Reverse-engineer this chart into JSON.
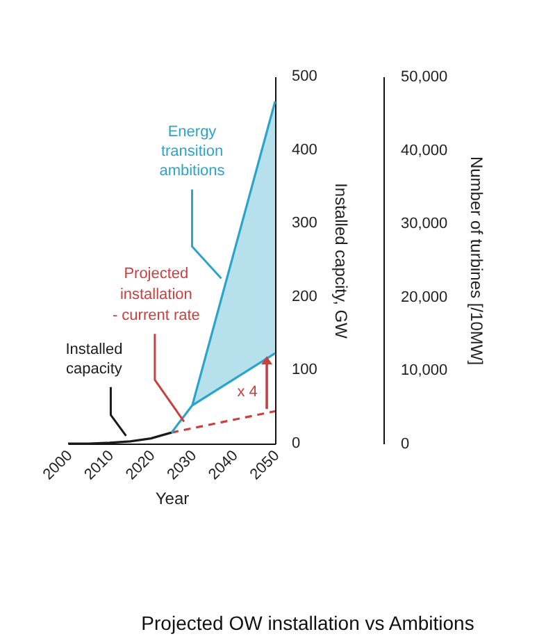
{
  "chart_data": {
    "type": "line",
    "title": "Projected OW installation vs Ambitions",
    "xlabel": "Year",
    "y2label": "Installed capcity, GW",
    "y3label": "Number of turbines [/10MW]",
    "xlim": [
      2000,
      2050
    ],
    "xticks": [
      2000,
      2010,
      2020,
      2030,
      2040,
      2050
    ],
    "y2lim": [
      0,
      500
    ],
    "y2ticks": [
      0,
      100,
      200,
      300,
      400,
      500
    ],
    "y3lim": [
      0,
      50000
    ],
    "y3ticks": [
      {
        "value": 0,
        "label": "0"
      },
      {
        "value": 10000,
        "label": "10,000"
      },
      {
        "value": 20000,
        "label": "20,000"
      },
      {
        "value": 30000,
        "label": "30,000"
      },
      {
        "value": 40000,
        "label": "40,000"
      },
      {
        "value": 50000,
        "label": "50,000"
      }
    ],
    "grid": false,
    "series": [
      {
        "axis": "y2",
        "color": "#1a1a1a",
        "line_style": "solid",
        "x": [
          2000,
          2005,
          2010,
          2015,
          2020,
          2025
        ],
        "values": [
          0,
          0,
          1,
          3,
          7,
          15
        ]
      },
      {
        "axis": "y2",
        "color": "#c94040",
        "line_style": "dashed",
        "x": [
          2025,
          2050
        ],
        "values": [
          15,
          44
        ]
      },
      {
        "axis": "y2",
        "color": "#2aa5c9",
        "line_style": "solid",
        "x": [
          2025,
          2030,
          2050
        ],
        "values": [
          15,
          52,
          123
        ]
      },
      {
        "axis": "y2",
        "color": "#2aa5c9",
        "line_style": "solid",
        "x": [
          2030,
          2050
        ],
        "values": [
          52,
          466
        ],
        "lower": [
          52,
          123
        ],
        "upper": [
          52,
          466
        ]
      }
    ],
    "annotations": [
      "Energy\ntransition\nambitions",
      "Projected\ninstallation\n- current rate",
      "Installed\ncapacity",
      "x 4"
    ]
  }
}
